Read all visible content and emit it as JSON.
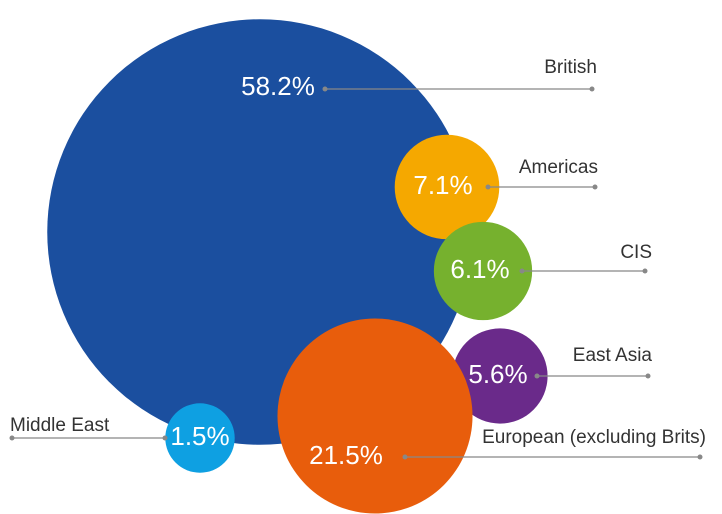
{
  "chart_data": {
    "type": "bubble",
    "categories": [
      "British",
      "Americas",
      "CIS",
      "East Asia",
      "European (excluding Brits)",
      "Middle East"
    ],
    "values": [
      58.2,
      7.1,
      6.1,
      5.6,
      21.5,
      1.5
    ],
    "value_labels": [
      "58.2%",
      "7.1%",
      "6.1%",
      "5.6%",
      "21.5%",
      "1.5%"
    ],
    "colors": [
      "#1b4f9f",
      "#f5a800",
      "#76b12e",
      "#6a2a8a",
      "#e85d0c",
      "#0ea0e2"
    ]
  }
}
